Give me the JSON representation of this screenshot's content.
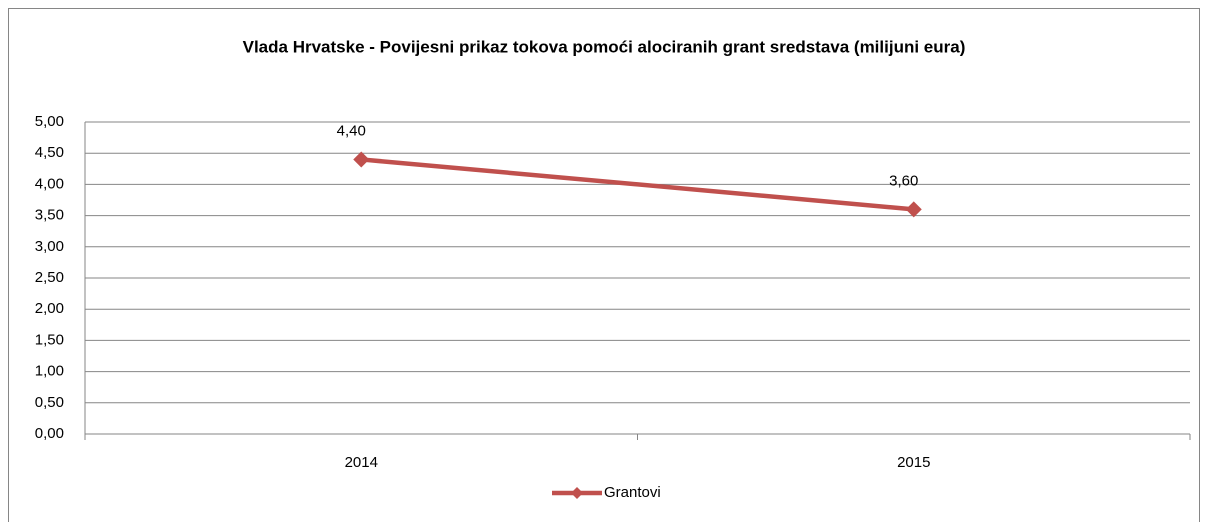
{
  "chart_data": {
    "type": "line",
    "title": "Vlada Hrvatske - Povijesni prikaz tokova pomoći alociranih grant sredstava (milijuni eura)",
    "categories": [
      "2014",
      "2015"
    ],
    "series": [
      {
        "name": "Grantovi",
        "color": "#c0504d",
        "values": [
          4.4,
          3.6
        ],
        "value_labels": [
          "4,40",
          "3,60"
        ]
      }
    ],
    "ylim": [
      0,
      5
    ],
    "yticks": [
      {
        "value": 0,
        "label": "0,00"
      },
      {
        "value": 0.5,
        "label": "0,50"
      },
      {
        "value": 1,
        "label": "1,00"
      },
      {
        "value": 1.5,
        "label": "1,50"
      },
      {
        "value": 2,
        "label": "2,00"
      },
      {
        "value": 2.5,
        "label": "2,50"
      },
      {
        "value": 3,
        "label": "3,00"
      },
      {
        "value": 3.5,
        "label": "3,50"
      },
      {
        "value": 4,
        "label": "4,00"
      },
      {
        "value": 4.5,
        "label": "4,50"
      },
      {
        "value": 5,
        "label": "5,00"
      }
    ],
    "grid": true,
    "legend": "bottom"
  }
}
